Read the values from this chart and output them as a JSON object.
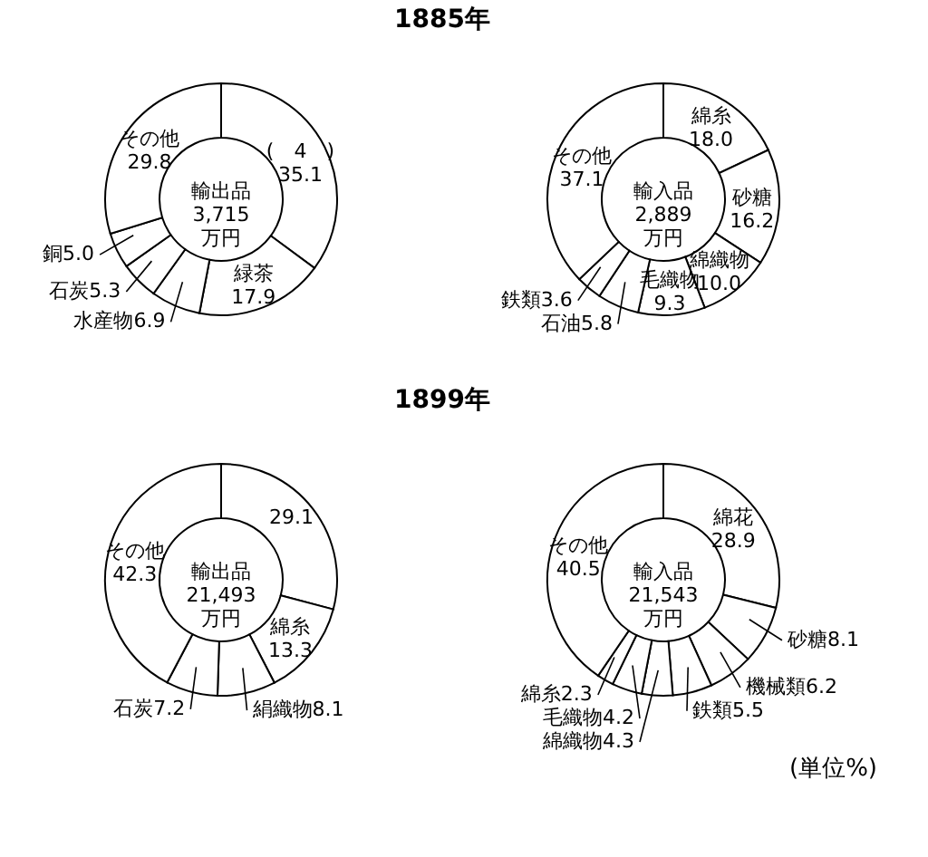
{
  "chart_data": [
    {
      "type": "donut",
      "title": "1885年",
      "categories": [
        "(　4　)",
        "緑茶",
        "水産物",
        "石炭",
        "銅",
        "その他"
      ],
      "values": [
        35.1,
        17.9,
        6.9,
        5.3,
        5.0,
        29.8
      ],
      "colors": [
        "#ffffff",
        "#ffffff",
        "#ffffff",
        "#ffffff",
        "#ffffff",
        "#ffffff"
      ],
      "data_labels": true,
      "value_labels": [
        "35.1",
        "17.9",
        "6.9",
        "5.3",
        "5.0",
        "29.8"
      ],
      "annotations": [
        "輸出品",
        "3,715",
        "万円"
      ]
    },
    {
      "type": "donut",
      "categories": [
        "綿糸",
        "砂糖",
        "綿織物",
        "毛織物",
        "石油",
        "鉄類",
        "その他"
      ],
      "values": [
        18.0,
        16.2,
        10.0,
        9.3,
        5.8,
        3.6,
        37.1
      ],
      "colors": [
        "#ffffff",
        "#ffffff",
        "#ffffff",
        "#ffffff",
        "#ffffff",
        "#ffffff",
        "#ffffff"
      ],
      "data_labels": true,
      "value_labels": [
        "18.0",
        "16.2",
        "10.0",
        "9.3",
        "5.8",
        "3.6",
        "37.1"
      ],
      "annotations": [
        "輸入品",
        "2,889",
        "万円"
      ]
    },
    {
      "type": "donut",
      "title": "1899年",
      "categories": [
        null,
        "綿糸",
        "絹織物",
        "石炭",
        "その他"
      ],
      "values": [
        29.1,
        13.3,
        8.1,
        7.2,
        42.3
      ],
      "colors": [
        "#ffffff",
        "#ffffff",
        "#ffffff",
        "#ffffff",
        "#ffffff"
      ],
      "data_labels": true,
      "value_labels": [
        "29.1",
        "13.3",
        "8.1",
        "7.2",
        "42.3"
      ],
      "annotations": [
        "輸出品",
        "21,493",
        "万円"
      ]
    },
    {
      "type": "donut",
      "categories": [
        "綿花",
        "砂糖",
        "機械類",
        "鉄類",
        "綿織物",
        "毛織物",
        "綿糸",
        "その他"
      ],
      "values": [
        28.9,
        8.1,
        6.2,
        5.5,
        4.3,
        4.2,
        2.3,
        40.5
      ],
      "colors": [
        "#ffffff",
        "#ffffff",
        "#ffffff",
        "#ffffff",
        "#ffffff",
        "#ffffff",
        "#ffffff",
        "#ffffff"
      ],
      "data_labels": true,
      "value_labels": [
        "28.9",
        "8.1",
        "6.2",
        "5.5",
        "4.3",
        "4.2",
        "2.3",
        "40.5"
      ],
      "annotations": [
        "輸入品",
        "21,543",
        "万円",
        "(単位%)"
      ]
    }
  ]
}
